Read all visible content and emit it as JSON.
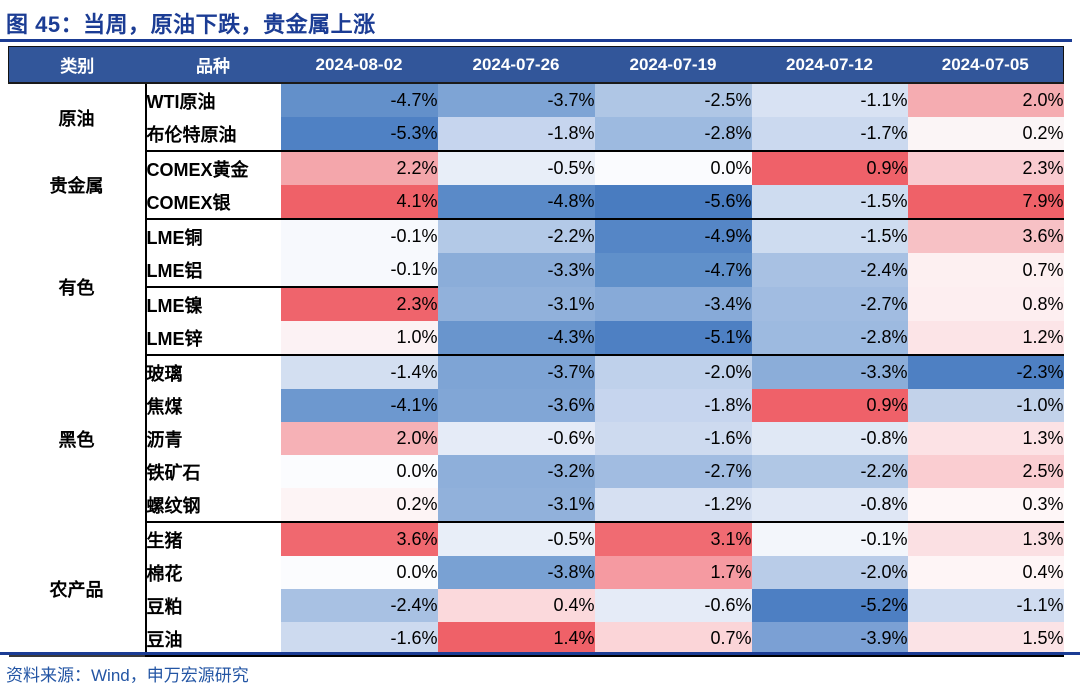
{
  "figure": {
    "title": "图 45：当周，原油下跌，贵金属上涨",
    "source": "资料来源：Wind，申万宏源研究"
  },
  "colors": {
    "title_blue": "#1B3C94",
    "header_bg": "#32569A",
    "header_text": "#FFFFFF",
    "rule_blue": "#1B3C94",
    "source_text": "#2355A4",
    "block_border": "#000000",
    "table_bottom_border": "#3A3A3A",
    "heat_strong_red": "#EF6168",
    "heat_strong_blue": "#497CC0",
    "heat_midpoint_white": "#FBFCFE"
  },
  "chart_data": {
    "type": "heatmap",
    "title": "图 45：当周，原油下跌，贵金属上涨",
    "value_unit": "% weekly change",
    "column_headers": {
      "category": "类别",
      "variety": "品种"
    },
    "dates": [
      "2024-08-02",
      "2024-07-26",
      "2024-07-19",
      "2024-07-12",
      "2024-07-05"
    ],
    "legend_note": "red = gain, blue = decline",
    "groups": [
      {
        "category": "原油",
        "rows": [
          {
            "name": "WTI原油",
            "cells": [
              {
                "t": "-4.7%",
                "v": -4.7,
                "bg": "#6390CA"
              },
              {
                "t": "-3.7%",
                "v": -3.7,
                "bg": "#7EA4D5"
              },
              {
                "t": "-2.5%",
                "v": -2.5,
                "bg": "#AFC6E5"
              },
              {
                "t": "-1.1%",
                "v": -1.1,
                "bg": "#D8E2F3"
              },
              {
                "t": "2.0%",
                "v": 2.0,
                "bg": "#F5ACB1"
              }
            ]
          },
          {
            "name": "布伦特原油",
            "cells": [
              {
                "t": "-5.3%",
                "v": -5.3,
                "bg": "#4F81C4"
              },
              {
                "t": "-1.8%",
                "v": -1.8,
                "bg": "#C6D5EE"
              },
              {
                "t": "-2.8%",
                "v": -2.8,
                "bg": "#9DBAE0"
              },
              {
                "t": "-1.7%",
                "v": -1.7,
                "bg": "#CBD9EF"
              },
              {
                "t": "0.2%",
                "v": 0.2,
                "bg": "#FBF5F6"
              }
            ]
          }
        ]
      },
      {
        "category": "贵金属",
        "rows": [
          {
            "name": "COMEX黄金",
            "cells": [
              {
                "t": "2.2%",
                "v": 2.2,
                "bg": "#F4A6AB"
              },
              {
                "t": "-0.5%",
                "v": -0.5,
                "bg": "#E8EEF8"
              },
              {
                "t": "0.0%",
                "v": 0.0,
                "bg": "#FAFBFE"
              },
              {
                "t": "0.9%",
                "v": 0.9,
                "bg": "#EF6169"
              },
              {
                "t": "2.3%",
                "v": 2.3,
                "bg": "#F9CBD0"
              }
            ]
          },
          {
            "name": "COMEX银",
            "cells": [
              {
                "t": "4.1%",
                "v": 4.1,
                "bg": "#EF6168"
              },
              {
                "t": "-4.8%",
                "v": -4.8,
                "bg": "#5A8AC8"
              },
              {
                "t": "-5.6%",
                "v": -5.6,
                "bg": "#497CC0"
              },
              {
                "t": "-1.5%",
                "v": -1.5,
                "bg": "#CEDCF0"
              },
              {
                "t": "7.9%",
                "v": 7.9,
                "bg": "#EF6168"
              }
            ]
          }
        ]
      },
      {
        "category": "有色",
        "rows": [
          {
            "name": "LME铜",
            "cells": [
              {
                "t": "-0.1%",
                "v": -0.1,
                "bg": "#F7F9FD"
              },
              {
                "t": "-2.2%",
                "v": -2.2,
                "bg": "#B3C9E7"
              },
              {
                "t": "-4.9%",
                "v": -4.9,
                "bg": "#5586C6"
              },
              {
                "t": "-1.5%",
                "v": -1.5,
                "bg": "#CEDCF0"
              },
              {
                "t": "3.6%",
                "v": 3.6,
                "bg": "#F7C1C5"
              }
            ]
          },
          {
            "name": "LME铝",
            "cells": [
              {
                "t": "-0.1%",
                "v": -0.1,
                "bg": "#F7F9FD"
              },
              {
                "t": "-3.3%",
                "v": -3.3,
                "bg": "#8BADD9"
              },
              {
                "t": "-4.7%",
                "v": -4.7,
                "bg": "#6090CA"
              },
              {
                "t": "-2.4%",
                "v": -2.4,
                "bg": "#A8C1E3"
              },
              {
                "t": "0.7%",
                "v": 0.7,
                "bg": "#FDF0F1"
              }
            ]
          },
          {
            "name": "LME镍",
            "cells": [
              {
                "t": "2.3%",
                "v": 2.3,
                "bg": "#EF646C"
              },
              {
                "t": "-3.1%",
                "v": -3.1,
                "bg": "#91B1DB"
              },
              {
                "t": "-3.4%",
                "v": -3.4,
                "bg": "#87AAD8"
              },
              {
                "t": "-2.7%",
                "v": -2.7,
                "bg": "#A1BCE1"
              },
              {
                "t": "0.8%",
                "v": 0.8,
                "bg": "#FDEEF0"
              }
            ]
          },
          {
            "name": "LME锌",
            "cells": [
              {
                "t": "1.0%",
                "v": 1.0,
                "bg": "#FCF2F4"
              },
              {
                "t": "-4.3%",
                "v": -4.3,
                "bg": "#6995CD"
              },
              {
                "t": "-5.1%",
                "v": -5.1,
                "bg": "#4E80C3"
              },
              {
                "t": "-2.8%",
                "v": -2.8,
                "bg": "#9DBAE0"
              },
              {
                "t": "1.2%",
                "v": 1.2,
                "bg": "#FCE4E7"
              }
            ]
          }
        ]
      },
      {
        "category": "黑色",
        "rows": [
          {
            "name": "玻璃",
            "cells": [
              {
                "t": "-1.4%",
                "v": -1.4,
                "bg": "#D3DFF1"
              },
              {
                "t": "-3.7%",
                "v": -3.7,
                "bg": "#7EA4D5"
              },
              {
                "t": "-2.0%",
                "v": -2.0,
                "bg": "#BFD1EB"
              },
              {
                "t": "-3.3%",
                "v": -3.3,
                "bg": "#8BADD9"
              },
              {
                "t": "-2.3%",
                "v": -2.3,
                "bg": "#4E80C3"
              }
            ]
          },
          {
            "name": "焦煤",
            "cells": [
              {
                "t": "-4.1%",
                "v": -4.1,
                "bg": "#6D98CF"
              },
              {
                "t": "-3.6%",
                "v": -3.6,
                "bg": "#81A6D6"
              },
              {
                "t": "-1.8%",
                "v": -1.8,
                "bg": "#C6D5EE"
              },
              {
                "t": "0.9%",
                "v": 0.9,
                "bg": "#EF6169"
              },
              {
                "t": "-1.0%",
                "v": -1.0,
                "bg": "#C2D2EA"
              }
            ]
          },
          {
            "name": "沥青",
            "cells": [
              {
                "t": "2.0%",
                "v": 2.0,
                "bg": "#F6B1B6"
              },
              {
                "t": "-0.6%",
                "v": -0.6,
                "bg": "#E5EBF7"
              },
              {
                "t": "-1.6%",
                "v": -1.6,
                "bg": "#CDDAEF"
              },
              {
                "t": "-0.8%",
                "v": -0.8,
                "bg": "#E0E8F5"
              },
              {
                "t": "1.3%",
                "v": 1.3,
                "bg": "#FCE2E5"
              }
            ]
          },
          {
            "name": "铁矿石",
            "cells": [
              {
                "t": "0.0%",
                "v": 0.0,
                "bg": "#FBFCFE"
              },
              {
                "t": "-3.2%",
                "v": -3.2,
                "bg": "#8EAFDA"
              },
              {
                "t": "-2.7%",
                "v": -2.7,
                "bg": "#A1BCE1"
              },
              {
                "t": "-2.2%",
                "v": -2.2,
                "bg": "#B0C7E5"
              },
              {
                "t": "2.5%",
                "v": 2.5,
                "bg": "#FACDD1"
              }
            ]
          },
          {
            "name": "螺纹钢",
            "cells": [
              {
                "t": "0.2%",
                "v": 0.2,
                "bg": "#FDF4F5"
              },
              {
                "t": "-3.1%",
                "v": -3.1,
                "bg": "#91B1DB"
              },
              {
                "t": "-1.2%",
                "v": -1.2,
                "bg": "#D6E0F2"
              },
              {
                "t": "-0.8%",
                "v": -0.8,
                "bg": "#DFE7F5"
              },
              {
                "t": "0.3%",
                "v": 0.3,
                "bg": "#FEF6F7"
              }
            ]
          }
        ]
      },
      {
        "category": "农产品",
        "rows": [
          {
            "name": "生猪",
            "cells": [
              {
                "t": "3.6%",
                "v": 3.6,
                "bg": "#F0686F"
              },
              {
                "t": "-0.5%",
                "v": -0.5,
                "bg": "#E8EEF8"
              },
              {
                "t": "3.1%",
                "v": 3.1,
                "bg": "#F06B72"
              },
              {
                "t": "-0.1%",
                "v": -0.1,
                "bg": "#F3F6FB"
              },
              {
                "t": "1.3%",
                "v": 1.3,
                "bg": "#FBE0E3"
              }
            ]
          },
          {
            "name": "棉花",
            "cells": [
              {
                "t": "0.0%",
                "v": 0.0,
                "bg": "#FBFCFE"
              },
              {
                "t": "-3.8%",
                "v": -3.8,
                "bg": "#79A1D3"
              },
              {
                "t": "1.7%",
                "v": 1.7,
                "bg": "#F59AA1"
              },
              {
                "t": "-2.0%",
                "v": -2.0,
                "bg": "#B9CCE8"
              },
              {
                "t": "0.4%",
                "v": 0.4,
                "bg": "#FEF5F6"
              }
            ]
          },
          {
            "name": "豆粕",
            "cells": [
              {
                "t": "-2.4%",
                "v": -2.4,
                "bg": "#A8C1E3"
              },
              {
                "t": "0.4%",
                "v": 0.4,
                "bg": "#FBD9DC"
              },
              {
                "t": "-0.6%",
                "v": -0.6,
                "bg": "#E5EBF7"
              },
              {
                "t": "-5.2%",
                "v": -5.2,
                "bg": "#4D7FC3"
              },
              {
                "t": "-1.1%",
                "v": -1.1,
                "bg": "#D0DCF0"
              }
            ]
          },
          {
            "name": "豆油",
            "cells": [
              {
                "t": "-1.6%",
                "v": -1.6,
                "bg": "#CDDAEF"
              },
              {
                "t": "1.4%",
                "v": 1.4,
                "bg": "#EF6168"
              },
              {
                "t": "0.7%",
                "v": 0.7,
                "bg": "#FBD5D8"
              },
              {
                "t": "-3.9%",
                "v": -3.9,
                "bg": "#7BA0D4"
              },
              {
                "t": "1.5%",
                "v": 1.5,
                "bg": "#FBE3E6"
              }
            ]
          }
        ]
      }
    ]
  }
}
